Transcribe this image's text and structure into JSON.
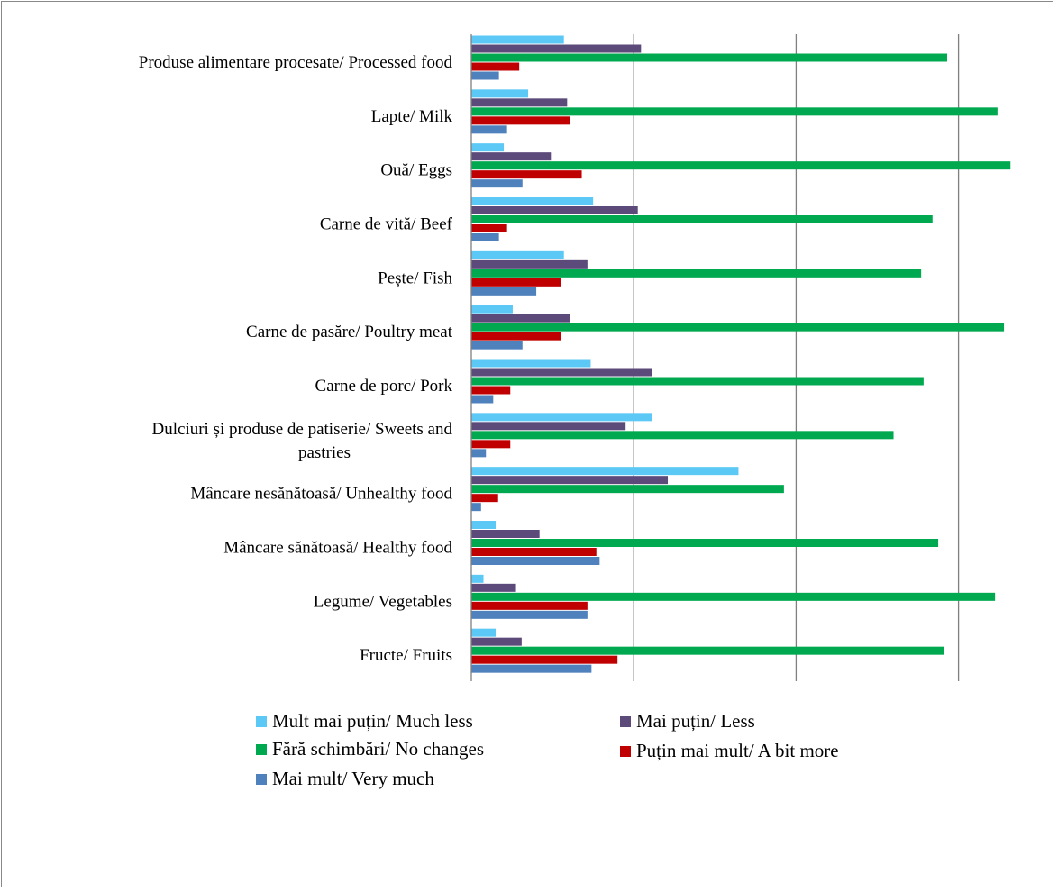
{
  "chart_data": {
    "type": "bar",
    "orientation": "horizontal",
    "categories": [
      "Produse alimentare procesate/ Processed food",
      "Lapte/ Milk",
      "Ouă/ Eggs",
      "Carne de vită/ Beef",
      "Pește/ Fish",
      "Carne de pasăre/ Poultry meat",
      "Carne de porc/ Pork",
      "Dulciuri și produse de patiserie/ Sweets and pastries",
      "Mâncare nesănătoasă/ Unhealthy food",
      "Mâncare sănătoasă/ Healthy food",
      "Legume/ Vegetables",
      "Fructe/ Fruits"
    ],
    "series": [
      {
        "name": "Mult mai puțin/ Much less",
        "color": "#5BC8F5",
        "values": [
          11.4,
          7.0,
          4.0,
          15.0,
          11.4,
          5.1,
          14.7,
          22.3,
          32.9,
          3.0,
          1.5,
          3.0
        ]
      },
      {
        "name": "Mai puțin/ Less",
        "color": "#5B4A7A",
        "values": [
          20.9,
          11.8,
          9.8,
          20.5,
          14.3,
          12.1,
          22.3,
          19.0,
          24.2,
          8.4,
          5.5,
          6.2
        ]
      },
      {
        "name": "Fără schimbări/ No changes",
        "color": "#00A850",
        "values": [
          58.6,
          64.8,
          66.4,
          56.8,
          55.4,
          65.6,
          55.7,
          52.0,
          38.5,
          57.5,
          64.5,
          58.2
        ]
      },
      {
        "name": "Puțin mai mult/ A bit more",
        "color": "#C00000",
        "values": [
          5.9,
          12.1,
          13.6,
          4.4,
          11.0,
          11.0,
          4.8,
          4.8,
          3.3,
          15.4,
          14.3,
          18.0
        ]
      },
      {
        "name": "Mai mult/ Very much",
        "color": "#4F81BD",
        "values": [
          3.4,
          4.4,
          6.3,
          3.4,
          8.0,
          6.3,
          2.7,
          1.8,
          1.2,
          15.8,
          14.3,
          14.8
        ]
      }
    ],
    "xlabel": "%",
    "ylabel": "",
    "xlim": [
      0,
      66
    ],
    "xticks": [
      0,
      20,
      40,
      60
    ],
    "grid": "vertical",
    "legend_position": "bottom"
  }
}
